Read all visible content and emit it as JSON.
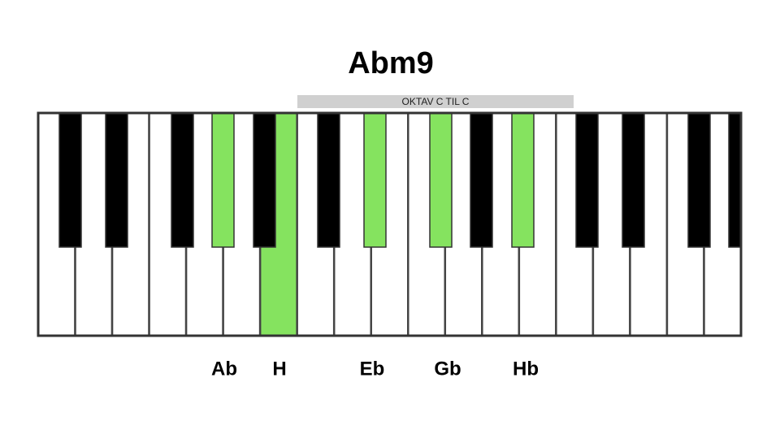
{
  "title": "Abm9",
  "octave_label": "OKTAV C TIL C",
  "notes": [
    "Ab",
    "H",
    "Eb",
    "Gb",
    "Hb"
  ]
}
